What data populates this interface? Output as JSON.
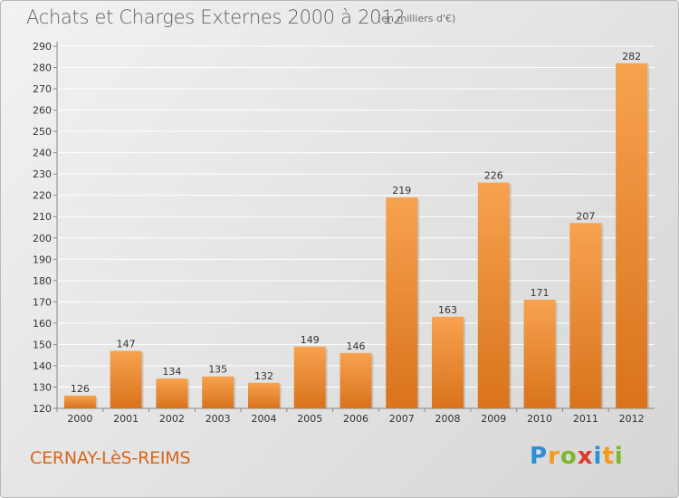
{
  "header": {
    "title": "Achats et Charges Externes 2000 à 2012",
    "subtitle": "(en milliers d'€)"
  },
  "footer": {
    "place": "CERNAY-LèS-REIMS",
    "logo_letters": [
      "P",
      "r",
      "o",
      "x",
      "i",
      "t",
      "i"
    ],
    "logo_colors": [
      "#2d8fd5",
      "#f39a1c",
      "#7cb82f",
      "#e23a2a",
      "#2d8fd5",
      "#f39a1c",
      "#7cb82f"
    ]
  },
  "colors": {
    "bar_light": "#f7a24f",
    "bar_dark": "#d9731c",
    "grid": "#ffffff",
    "axis": "#888888"
  },
  "chart_data": {
    "type": "bar",
    "title": "Achats et Charges Externes 2000 à 2012",
    "subtitle": "(en milliers d'€)",
    "categories": [
      "2000",
      "2001",
      "2002",
      "2003",
      "2004",
      "2005",
      "2006",
      "2007",
      "2008",
      "2009",
      "2010",
      "2011",
      "2012"
    ],
    "values": [
      126,
      147,
      134,
      135,
      132,
      149,
      146,
      219,
      163,
      226,
      171,
      207,
      282
    ],
    "ylim": [
      120,
      290
    ],
    "yticks": [
      120,
      130,
      140,
      150,
      160,
      170,
      180,
      190,
      200,
      210,
      220,
      230,
      240,
      250,
      260,
      270,
      280,
      290
    ],
    "grid": true,
    "legend": "none"
  }
}
